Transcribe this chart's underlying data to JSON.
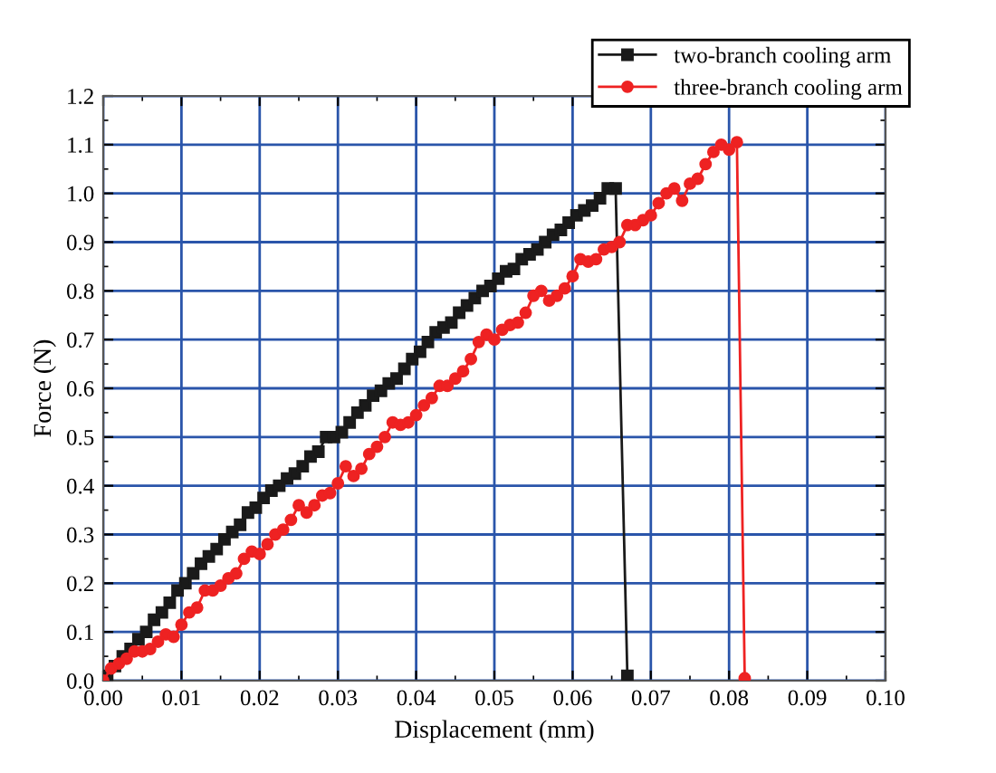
{
  "chart_data": {
    "type": "line",
    "xlabel": "Displacement (mm)",
    "ylabel": "Force (N)",
    "xlim": [
      0,
      0.1
    ],
    "ylim": [
      0,
      1.2
    ],
    "xticks": [
      {
        "value": 0,
        "label": "0.00"
      },
      {
        "value": 0.01,
        "label": "0.01"
      },
      {
        "value": 0.02,
        "label": "0.02"
      },
      {
        "value": 0.03,
        "label": "0.03"
      },
      {
        "value": 0.04,
        "label": "0.04"
      },
      {
        "value": 0.05,
        "label": "0.05"
      },
      {
        "value": 0.06,
        "label": "0.06"
      },
      {
        "value": 0.07,
        "label": "0.07"
      },
      {
        "value": 0.08,
        "label": "0.08"
      },
      {
        "value": 0.09,
        "label": "0.09"
      },
      {
        "value": 0.1,
        "label": "0.10"
      }
    ],
    "yticks": [
      {
        "value": 0,
        "label": "0.0"
      },
      0.1,
      0.2,
      0.3,
      0.4,
      0.5,
      0.6,
      0.7,
      0.8,
      0.9,
      {
        "value": 1,
        "label": "1.0"
      },
      1.1,
      1.2
    ],
    "grid": true,
    "legend": "top right",
    "line_style": "solid",
    "series": [
      {
        "name": "two-branch cooling arm",
        "color": "#1a1a1a",
        "marker": "square",
        "x": [
          0.0005,
          0.0015,
          0.0025,
          0.0035,
          0.0045,
          0.0055,
          0.0065,
          0.0075,
          0.0085,
          0.0095,
          0.0105,
          0.0115,
          0.0125,
          0.0135,
          0.0145,
          0.0155,
          0.0165,
          0.0175,
          0.0185,
          0.0195,
          0.0205,
          0.0215,
          0.0225,
          0.0235,
          0.0245,
          0.0255,
          0.0265,
          0.0275,
          0.0285,
          0.0295,
          0.0305,
          0.0315,
          0.0325,
          0.0335,
          0.0345,
          0.0355,
          0.0365,
          0.0375,
          0.0385,
          0.0395,
          0.0405,
          0.0415,
          0.0425,
          0.0435,
          0.0445,
          0.0455,
          0.0465,
          0.0475,
          0.0485,
          0.0495,
          0.0505,
          0.0515,
          0.0525,
          0.0535,
          0.0545,
          0.0555,
          0.0565,
          0.0575,
          0.0585,
          0.0595,
          0.0605,
          0.0615,
          0.0625,
          0.0635,
          0.0645,
          0.0655,
          0.067
        ],
        "values": [
          0.01,
          0.03,
          0.05,
          0.065,
          0.085,
          0.1,
          0.125,
          0.14,
          0.16,
          0.185,
          0.2,
          0.22,
          0.24,
          0.255,
          0.27,
          0.29,
          0.305,
          0.32,
          0.345,
          0.355,
          0.375,
          0.39,
          0.4,
          0.415,
          0.425,
          0.44,
          0.46,
          0.47,
          0.5,
          0.5,
          0.51,
          0.53,
          0.55,
          0.565,
          0.585,
          0.595,
          0.61,
          0.62,
          0.64,
          0.66,
          0.675,
          0.695,
          0.715,
          0.725,
          0.735,
          0.755,
          0.77,
          0.785,
          0.8,
          0.81,
          0.825,
          0.84,
          0.845,
          0.865,
          0.875,
          0.885,
          0.9,
          0.915,
          0.925,
          0.94,
          0.955,
          0.965,
          0.975,
          0.99,
          1.01,
          1.01,
          0.01
        ]
      },
      {
        "name": "three-branch cooling arm",
        "color": "#ee2222",
        "marker": "circle",
        "x": [
          0,
          0.001,
          0.002,
          0.003,
          0.004,
          0.005,
          0.006,
          0.007,
          0.008,
          0.009,
          0.01,
          0.011,
          0.012,
          0.013,
          0.014,
          0.015,
          0.016,
          0.017,
          0.018,
          0.019,
          0.02,
          0.021,
          0.022,
          0.023,
          0.024,
          0.025,
          0.026,
          0.027,
          0.028,
          0.029,
          0.03,
          0.031,
          0.032,
          0.033,
          0.034,
          0.035,
          0.036,
          0.037,
          0.038,
          0.039,
          0.04,
          0.041,
          0.042,
          0.043,
          0.044,
          0.045,
          0.046,
          0.047,
          0.048,
          0.049,
          0.05,
          0.051,
          0.052,
          0.053,
          0.054,
          0.055,
          0.056,
          0.057,
          0.058,
          0.059,
          0.06,
          0.061,
          0.062,
          0.063,
          0.064,
          0.065,
          0.066,
          0.067,
          0.068,
          0.069,
          0.07,
          0.071,
          0.072,
          0.073,
          0.074,
          0.075,
          0.076,
          0.077,
          0.078,
          0.079,
          0.08,
          0.081,
          0.082
        ],
        "values": [
          0,
          0.025,
          0.035,
          0.045,
          0.06,
          0.06,
          0.065,
          0.08,
          0.095,
          0.09,
          0.115,
          0.14,
          0.15,
          0.185,
          0.185,
          0.195,
          0.21,
          0.22,
          0.25,
          0.265,
          0.26,
          0.28,
          0.3,
          0.31,
          0.33,
          0.36,
          0.345,
          0.36,
          0.38,
          0.385,
          0.405,
          0.44,
          0.42,
          0.435,
          0.465,
          0.48,
          0.5,
          0.53,
          0.525,
          0.53,
          0.545,
          0.565,
          0.58,
          0.605,
          0.605,
          0.62,
          0.635,
          0.66,
          0.695,
          0.71,
          0.7,
          0.72,
          0.73,
          0.735,
          0.755,
          0.79,
          0.8,
          0.78,
          0.79,
          0.805,
          0.83,
          0.865,
          0.86,
          0.865,
          0.885,
          0.89,
          0.9,
          0.935,
          0.935,
          0.945,
          0.955,
          0.98,
          1.0,
          1.01,
          0.985,
          1.02,
          1.03,
          1.06,
          1.085,
          1.1,
          1.09,
          1.105,
          0.005
        ]
      }
    ]
  }
}
